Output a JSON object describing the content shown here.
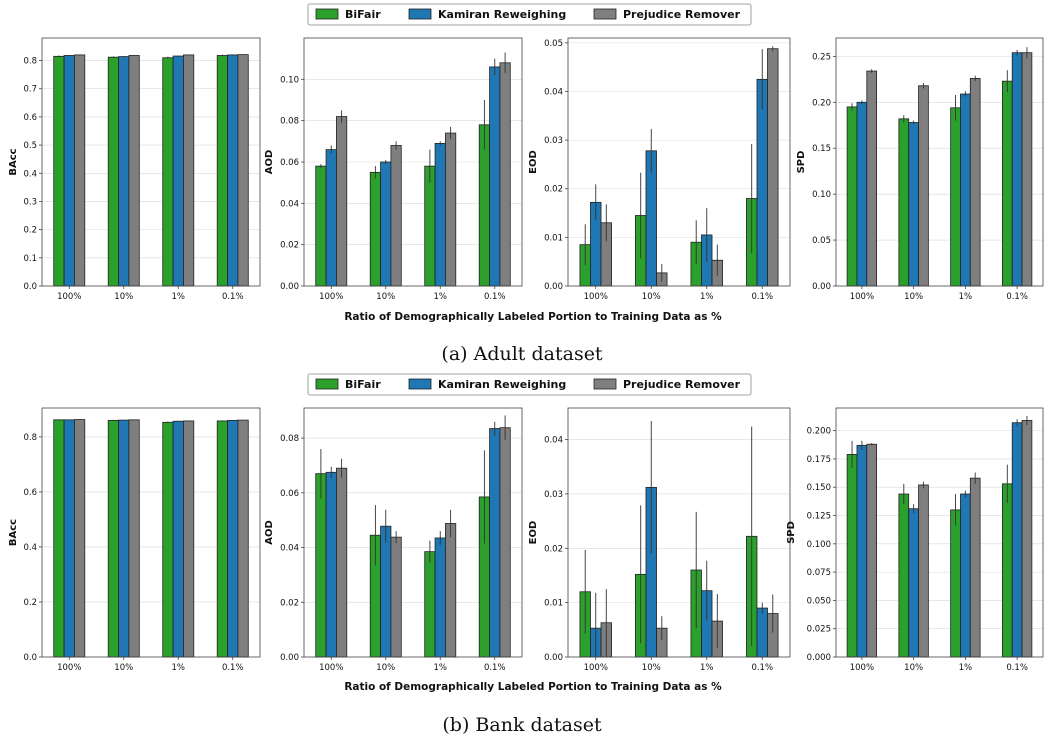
{
  "figure": {
    "xlabel": "Ratio of Demographically Labeled Portion to Training Data as %",
    "captions": [
      "(a) Adult dataset",
      "(b) Bank dataset"
    ],
    "legend": [
      {
        "name": "BiFair",
        "color": "#2ca02c"
      },
      {
        "name": "Kamiran Reweighing",
        "color": "#1f77b4"
      },
      {
        "name": "Prejudice Remover",
        "color": "#7f7f7f"
      }
    ]
  },
  "chart_data": [
    {
      "type": "bar",
      "dataset": "Adult",
      "ylabel": "BAcc",
      "categories": [
        "100%",
        "10%",
        "1%",
        "0.1%"
      ],
      "ylim": [
        0,
        0.88
      ],
      "yticks": [
        "0.0",
        "0.1",
        "0.2",
        "0.3",
        "0.4",
        "0.5",
        "0.6",
        "0.7",
        "0.8"
      ],
      "series": [
        {
          "name": "BiFair",
          "values": [
            0.815,
            0.812,
            0.81,
            0.818
          ],
          "errors": [
            0.003,
            0.003,
            0.004,
            0.003
          ]
        },
        {
          "name": "Kamiran Reweighing",
          "values": [
            0.818,
            0.814,
            0.816,
            0.82
          ],
          "errors": [
            0.002,
            0.002,
            0.002,
            0.002
          ]
        },
        {
          "name": "Prejudice Remover",
          "values": [
            0.82,
            0.818,
            0.82,
            0.821
          ],
          "errors": [
            0.001,
            0.001,
            0.001,
            0.001
          ]
        }
      ]
    },
    {
      "type": "bar",
      "dataset": "Adult",
      "ylabel": "AOD",
      "categories": [
        "100%",
        "10%",
        "1%",
        "0.1%"
      ],
      "ylim": [
        0,
        0.12
      ],
      "yticks": [
        "0.00",
        "0.02",
        "0.04",
        "0.06",
        "0.08",
        "0.10"
      ],
      "series": [
        {
          "name": "BiFair",
          "values": [
            0.058,
            0.055,
            0.058,
            0.078
          ],
          "errors": [
            0.001,
            0.003,
            0.008,
            0.012
          ]
        },
        {
          "name": "Kamiran Reweighing",
          "values": [
            0.066,
            0.06,
            0.069,
            0.106
          ],
          "errors": [
            0.002,
            0.001,
            0.001,
            0.004
          ]
        },
        {
          "name": "Prejudice Remover",
          "values": [
            0.082,
            0.068,
            0.074,
            0.108
          ],
          "errors": [
            0.003,
            0.002,
            0.003,
            0.005
          ]
        }
      ]
    },
    {
      "type": "bar",
      "dataset": "Adult",
      "ylabel": "EOD",
      "categories": [
        "100%",
        "10%",
        "1%",
        "0.1%"
      ],
      "ylim": [
        0,
        0.051
      ],
      "yticks": [
        "0.00",
        "0.01",
        "0.02",
        "0.03",
        "0.04",
        "0.05"
      ],
      "series": [
        {
          "name": "BiFair",
          "values": [
            0.0085,
            0.0145,
            0.009,
            0.018
          ],
          "errors": [
            0.0042,
            0.0088,
            0.0045,
            0.0112
          ]
        },
        {
          "name": "Kamiran Reweighing",
          "values": [
            0.0172,
            0.0278,
            0.0105,
            0.0425
          ],
          "errors": [
            0.0037,
            0.0045,
            0.0055,
            0.0062
          ]
        },
        {
          "name": "Prejudice Remover",
          "values": [
            0.013,
            0.0027,
            0.0053,
            0.0488
          ],
          "errors": [
            0.0038,
            0.0018,
            0.0032,
            0.0005
          ]
        }
      ]
    },
    {
      "type": "bar",
      "dataset": "Adult",
      "ylabel": "SPD",
      "categories": [
        "100%",
        "10%",
        "1%",
        "0.1%"
      ],
      "ylim": [
        0,
        0.27
      ],
      "yticks": [
        "0.00",
        "0.05",
        "0.10",
        "0.15",
        "0.20",
        "0.25"
      ],
      "series": [
        {
          "name": "BiFair",
          "values": [
            0.195,
            0.182,
            0.194,
            0.223
          ],
          "errors": [
            0.004,
            0.004,
            0.014,
            0.012
          ]
        },
        {
          "name": "Kamiran Reweighing",
          "values": [
            0.2,
            0.178,
            0.209,
            0.254
          ],
          "errors": [
            0.002,
            0.002,
            0.003,
            0.003
          ]
        },
        {
          "name": "Prejudice Remover",
          "values": [
            0.234,
            0.218,
            0.226,
            0.254
          ],
          "errors": [
            0.002,
            0.003,
            0.003,
            0.006
          ]
        }
      ]
    },
    {
      "type": "bar",
      "dataset": "Bank",
      "ylabel": "BAcc",
      "categories": [
        "100%",
        "10%",
        "1%",
        "0.1%"
      ],
      "ylim": [
        0,
        0.905
      ],
      "yticks": [
        "0.0",
        "0.2",
        "0.4",
        "0.6",
        "0.8"
      ],
      "series": [
        {
          "name": "BiFair",
          "values": [
            0.862,
            0.86,
            0.853,
            0.858
          ],
          "errors": [
            0.002,
            0.002,
            0.003,
            0.002
          ]
        },
        {
          "name": "Kamiran Reweighing",
          "values": [
            0.862,
            0.861,
            0.857,
            0.86
          ],
          "errors": [
            0.001,
            0.001,
            0.001,
            0.001
          ]
        },
        {
          "name": "Prejudice Remover",
          "values": [
            0.863,
            0.862,
            0.858,
            0.861
          ],
          "errors": [
            0.001,
            0.001,
            0.001,
            0.001
          ]
        }
      ]
    },
    {
      "type": "bar",
      "dataset": "Bank",
      "ylabel": "AOD",
      "categories": [
        "100%",
        "10%",
        "1%",
        "0.1%"
      ],
      "ylim": [
        0,
        0.091
      ],
      "yticks": [
        "0.00",
        "0.02",
        "0.04",
        "0.06",
        "0.08"
      ],
      "series": [
        {
          "name": "BiFair",
          "values": [
            0.067,
            0.0445,
            0.0385,
            0.0585
          ],
          "errors": [
            0.009,
            0.011,
            0.004,
            0.017
          ]
        },
        {
          "name": "Kamiran Reweighing",
          "values": [
            0.0675,
            0.0478,
            0.0435,
            0.0835
          ],
          "errors": [
            0.002,
            0.006,
            0.0025,
            0.0025
          ]
        },
        {
          "name": "Prejudice Remover",
          "values": [
            0.069,
            0.0438,
            0.0488,
            0.0838
          ],
          "errors": [
            0.0035,
            0.0022,
            0.005,
            0.0045
          ]
        }
      ]
    },
    {
      "type": "bar",
      "dataset": "Bank",
      "ylabel": "EOD",
      "categories": [
        "100%",
        "10%",
        "1%",
        "0.1%"
      ],
      "ylim": [
        0,
        0.0458
      ],
      "yticks": [
        "0.00",
        "0.01",
        "0.02",
        "0.03",
        "0.04"
      ],
      "series": [
        {
          "name": "BiFair",
          "values": [
            0.012,
            0.0152,
            0.016,
            0.0222
          ],
          "errors": [
            0.0077,
            0.0127,
            0.0107,
            0.0202
          ]
        },
        {
          "name": "Kamiran Reweighing",
          "values": [
            0.0053,
            0.0312,
            0.0122,
            0.009
          ],
          "errors": [
            0.0065,
            0.0122,
            0.0055,
            0.001
          ]
        },
        {
          "name": "Prejudice Remover",
          "values": [
            0.0063,
            0.0053,
            0.0066,
            0.008
          ],
          "errors": [
            0.0062,
            0.0022,
            0.005,
            0.0035
          ]
        }
      ]
    },
    {
      "type": "bar",
      "dataset": "Bank",
      "ylabel": "SPD",
      "categories": [
        "100%",
        "10%",
        "1%",
        "0.1%"
      ],
      "ylim": [
        0,
        0.22
      ],
      "yticks": [
        "0.000",
        "0.025",
        "0.050",
        "0.075",
        "0.100",
        "0.125",
        "0.150",
        "0.175",
        "0.200"
      ],
      "series": [
        {
          "name": "BiFair",
          "values": [
            0.179,
            0.144,
            0.13,
            0.153
          ],
          "errors": [
            0.012,
            0.009,
            0.014,
            0.017
          ]
        },
        {
          "name": "Kamiran Reweighing",
          "values": [
            0.187,
            0.131,
            0.144,
            0.207
          ],
          "errors": [
            0.004,
            0.004,
            0.003,
            0.003
          ]
        },
        {
          "name": "Prejudice Remover",
          "values": [
            0.188,
            0.152,
            0.158,
            0.209
          ],
          "errors": [
            0.001,
            0.003,
            0.005,
            0.004
          ]
        }
      ]
    }
  ]
}
